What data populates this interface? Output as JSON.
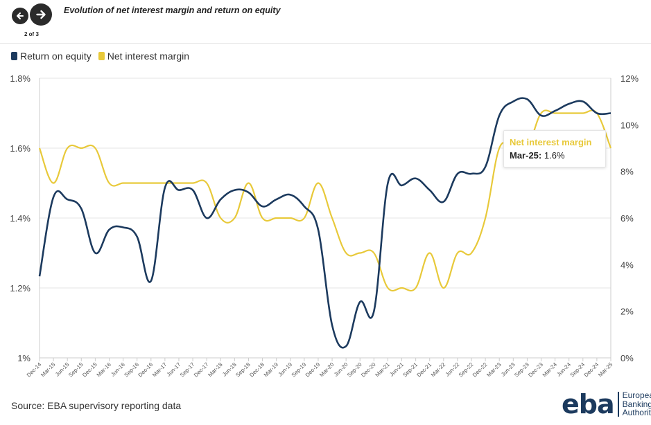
{
  "header": {
    "title": "Evolution of net interest margin and return on equity",
    "pager": "2 of 3",
    "prev_icon": "arrow-left-icon",
    "next_icon": "arrow-right-icon"
  },
  "source": "Source: EBA supervisory reporting data",
  "logo": {
    "mark": "eba",
    "line1": "European",
    "line2": "Banking",
    "line3": "Authority"
  },
  "tooltip": {
    "series": "Net interest margin",
    "label": "Mar-25:",
    "value": "1.6%"
  },
  "colors": {
    "roe": "#1c3a5e",
    "nim": "#e8c93a",
    "grid": "#e6e6e6"
  },
  "chart_data": {
    "type": "line",
    "title": "Evolution of net interest margin and return on equity",
    "x": [
      "Dec-14",
      "Mar-15",
      "Jun-15",
      "Sep-15",
      "Dec-15",
      "Mar-16",
      "Jun-16",
      "Sep-16",
      "Dec-16",
      "Mar-17",
      "Jun-17",
      "Sep-17",
      "Dec-17",
      "Mar-18",
      "Jun-18",
      "Sep-18",
      "Dec-18",
      "Mar-19",
      "Jun-19",
      "Sep-19",
      "Dec-19",
      "Mar-20",
      "Jun-20",
      "Sep-20",
      "Dec-20",
      "Mar-21",
      "Jun-21",
      "Sep-21",
      "Dec-21",
      "Mar-22",
      "Jun-22",
      "Sep-22",
      "Dec-22",
      "Mar-23",
      "Jun-23",
      "Sep-23",
      "Dec-23",
      "Mar-24",
      "Jun-24",
      "Sep-24",
      "Dec-24",
      "Mar-25"
    ],
    "series": [
      {
        "name": "Return on equity",
        "axis": "right",
        "values": [
          3.5,
          6.9,
          6.8,
          6.4,
          4.5,
          5.5,
          5.6,
          5.2,
          3.3,
          7.3,
          7.2,
          7.2,
          6.0,
          6.8,
          7.2,
          7.1,
          6.5,
          6.8,
          7.0,
          6.5,
          5.5,
          1.4,
          0.5,
          2.4,
          2.0,
          7.5,
          7.4,
          7.7,
          7.2,
          6.7,
          7.9,
          7.9,
          8.2,
          10.4,
          11.0,
          11.1,
          10.4,
          10.6,
          10.9,
          11.0,
          10.5,
          10.5
        ]
      },
      {
        "name": "Net interest margin",
        "axis": "left",
        "values": [
          1.6,
          1.5,
          1.6,
          1.6,
          1.6,
          1.5,
          1.5,
          1.5,
          1.5,
          1.5,
          1.5,
          1.5,
          1.5,
          1.4,
          1.4,
          1.5,
          1.4,
          1.4,
          1.4,
          1.4,
          1.5,
          1.4,
          1.3,
          1.3,
          1.3,
          1.2,
          1.2,
          1.2,
          1.3,
          1.2,
          1.3,
          1.3,
          1.4,
          1.6,
          1.6,
          1.6,
          1.7,
          1.7,
          1.7,
          1.7,
          1.7,
          1.6
        ]
      }
    ],
    "y_left": {
      "ylim": [
        1.0,
        1.8
      ],
      "ticks": [
        "1%",
        "1.2%",
        "1.4%",
        "1.6%",
        "1.8%"
      ]
    },
    "y_right": {
      "ylim": [
        0,
        12
      ],
      "ticks": [
        "0%",
        "2%",
        "4%",
        "6%",
        "8%",
        "10%",
        "12%"
      ]
    },
    "grid": true,
    "legend": "top-left"
  }
}
